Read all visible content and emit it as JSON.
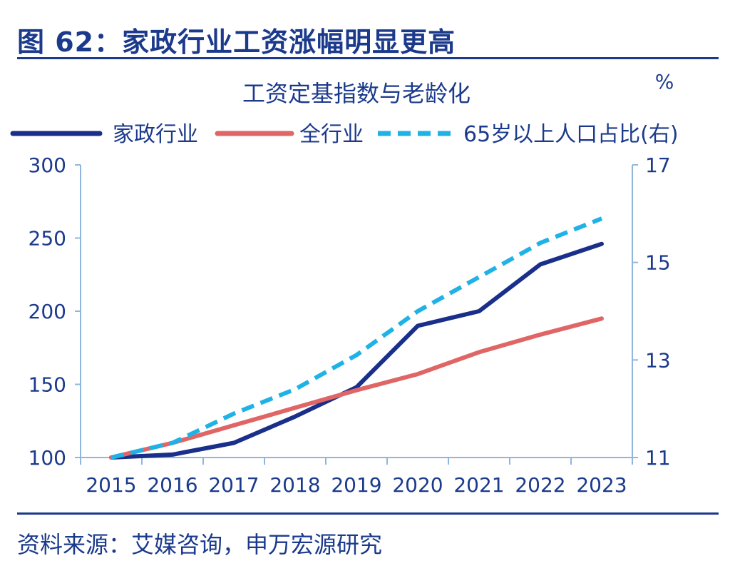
{
  "figure_title": "图 62：家政行业工资涨幅明显更高",
  "source_note": "资料来源：艾媒咨询，申万宏源研究",
  "colors": {
    "accent": "#1b3a8c",
    "axis": "#8fb6dc"
  },
  "chart_data": {
    "type": "line",
    "title": "工资定基指数与老龄化",
    "right_axis_unit": "%",
    "legend_position": "top",
    "grid": false,
    "categories": [
      "2015",
      "2016",
      "2017",
      "2018",
      "2019",
      "2020",
      "2021",
      "2022",
      "2023"
    ],
    "ylim": [
      100,
      300
    ],
    "yticks": [
      "100",
      "150",
      "200",
      "250",
      "300"
    ],
    "y2lim": [
      11,
      17
    ],
    "y2ticks": [
      "11",
      "13",
      "15",
      "17"
    ],
    "series": [
      {
        "name": "家政行业",
        "axis": "left",
        "style": "solid",
        "color": "#1a2f8a",
        "values": [
          100,
          102,
          110,
          128,
          148,
          190,
          200,
          232,
          246
        ]
      },
      {
        "name": "全行业",
        "axis": "left",
        "style": "solid",
        "color": "#e06666",
        "values": [
          100,
          110,
          122,
          134,
          146,
          157,
          172,
          184,
          195
        ]
      },
      {
        "name": "65岁以上人口占比(右)",
        "axis": "right",
        "style": "dashed",
        "color": "#1fb2e6",
        "values": [
          11.0,
          11.3,
          11.9,
          12.4,
          13.1,
          14.0,
          14.7,
          15.4,
          15.9
        ]
      }
    ]
  }
}
